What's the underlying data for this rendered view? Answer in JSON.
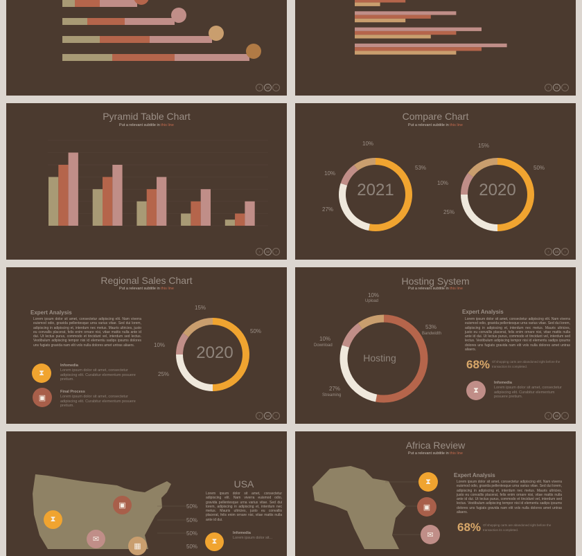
{
  "colors": {
    "olive": "#a89a75",
    "rust": "#b5654b",
    "pink": "#c08e88",
    "orange": "#f0a430",
    "cream": "#efe8dc",
    "tan": "#c99e6e"
  },
  "subtitle": {
    "prefix": "Put a relevant subtitle in ",
    "highlight": "this line"
  },
  "nav": {
    "prev": "‹",
    "next": "›"
  },
  "lorem_long": "Lorem ipsum dolor sit amet, consectetur adipiscing elit. Nam viverra euismod odio, gravida pellentesque urna varius vitae. Sed dui lorem, adipiscing in adipiscing et, interdum nec metus. Mauris ultricies, justo eu convallis placerat, felis enim ornare nisi, vitae mattis nulla ante id dui. Ut lectus purus, commodo et tincidunt vel, interdum sed lectus. Vestibulum adipiscing tempor nisi id elementu sadips ipsums dolores uns fugiats gravida nam elit vols nulla dolores amet untras aliaers.",
  "slides": [
    {
      "page": "10",
      "icons": [
        "shirt-icon",
        "database-icon",
        "megaphone-icon",
        "pencil-icon"
      ],
      "chart_data": {
        "type": "bar",
        "orientation": "horizontal",
        "stacked": true,
        "series": [
          {
            "values": [
              1,
              2,
              3,
              4
            ]
          },
          {
            "values": [
              2,
              3,
              4,
              5
            ]
          },
          {
            "values": [
              3,
              4,
              5,
              6
            ]
          }
        ]
      }
    },
    {
      "page": "11",
      "chart_data": {
        "type": "bar",
        "orientation": "horizontal",
        "series": [
          {
            "values": [
              3,
              4,
              5,
              6
            ]
          },
          {
            "values": [
              2,
              3,
              4,
              5
            ]
          },
          {
            "values": [
              1,
              2,
              3,
              4
            ]
          }
        ]
      }
    },
    {
      "page": "12",
      "title": "Pyramid Table Chart",
      "chart_data": {
        "type": "bar",
        "ylim": [
          0,
          7
        ],
        "grid": true,
        "series": [
          {
            "values": [
              4,
              3,
              2,
              1,
              0.5
            ]
          },
          {
            "values": [
              5,
              4,
              3,
              2,
              1
            ]
          },
          {
            "values": [
              6,
              5,
              4,
              3,
              2
            ]
          }
        ]
      }
    },
    {
      "page": "13",
      "title": "Compare Chart",
      "chart_data": [
        {
          "type": "pie",
          "center_label": "2021",
          "values": [
            53,
            27,
            10,
            10
          ],
          "labels": [
            "53%",
            "27%",
            "10%",
            "10%"
          ]
        },
        {
          "type": "pie",
          "center_label": "2020",
          "values": [
            50,
            25,
            10,
            15
          ],
          "labels": [
            "50%",
            "25%",
            "10%",
            "15%"
          ]
        }
      ]
    },
    {
      "page": "14",
      "title": "Regional Sales Chart",
      "heading": "Expert Analysis",
      "items": [
        {
          "title": "Infomedia",
          "text": "Lorem ipsum dolor sit amet, consectetur adipiscing elit. Curabitur elementum posuere pretium.",
          "icon": "hourglass-icon"
        },
        {
          "title": "Final Process",
          "text": "Lorem ipsum dolor sit amet, consectetur adipiscing elit. Curabitur elementum posuere pretium.",
          "icon": "image-icon"
        }
      ],
      "chart_data": {
        "type": "pie",
        "center_label": "2020",
        "values": [
          50,
          25,
          10,
          15
        ],
        "labels": [
          "50%",
          "25%",
          "10%",
          "15%"
        ]
      }
    },
    {
      "page": "15",
      "title": "Hosting System",
      "heading": "Expert Analysis",
      "stat": "68%",
      "stat_text": "Of shopping carts are abandoned right before the transaction its completed.",
      "item": {
        "title": "Infomedia",
        "text": "Lorem ipsum dolor sit amet, consectetur adipiscing elit. Curabitur elementum posuere pretium.",
        "icon": "hourglass-icon"
      },
      "chart_data": {
        "type": "pie",
        "center_label": "Hosting",
        "values": [
          53,
          27,
          10,
          10
        ],
        "labels": [
          "53%",
          "27%",
          "10%",
          "10%"
        ],
        "categories": [
          "Bandwidth",
          "Streaming",
          "Download",
          "Upload"
        ]
      }
    },
    {
      "title": "USA",
      "text": "Lorem ipsum dolor sit amet, consectetur adipiscing elit. Nam viverra euismod odio, gravida pellentesque urna varius vitae. Sed dui lorem, adipiscing in adipiscing et, interdum nec metus. Mauris ultricies, justo eu convallis placerat, felis enim ornare nisi, vitae mattis nulla ante id dui.",
      "percents": [
        "50%",
        "50%",
        "50%",
        "50%"
      ],
      "item": {
        "title": "Infomedia",
        "text": "Lorem ipsum dolor sit..."
      }
    },
    {
      "title": "Africa Review",
      "heading": "Expert Analysis",
      "stat": "68%",
      "stat_text": "Of shopping carts are abandoned right before the transaction its completed."
    }
  ]
}
